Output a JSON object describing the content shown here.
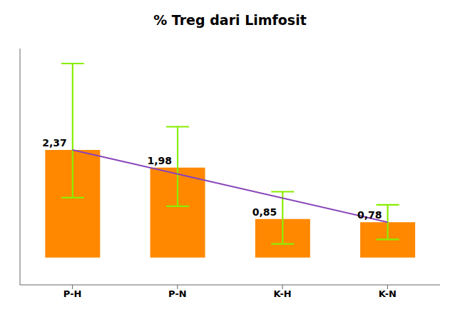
{
  "chart_data": {
    "type": "bar",
    "title": "% Treg dari Limfosit",
    "categories": [
      "P-H",
      "P-N",
      "K-H",
      "K-N"
    ],
    "values": [
      2.37,
      1.98,
      0.85,
      0.78
    ],
    "value_labels": [
      "2,37",
      "1,98",
      "0,85",
      "0,78"
    ],
    "errors_upper": [
      1.9,
      0.9,
      0.6,
      0.38
    ],
    "errors_lower": [
      1.05,
      0.85,
      0.55,
      0.38
    ],
    "color": "#FF8800",
    "ylim": [
      -0.6,
      4.6
    ],
    "data_labels": true,
    "tick_labels": "x",
    "grid": false
  }
}
